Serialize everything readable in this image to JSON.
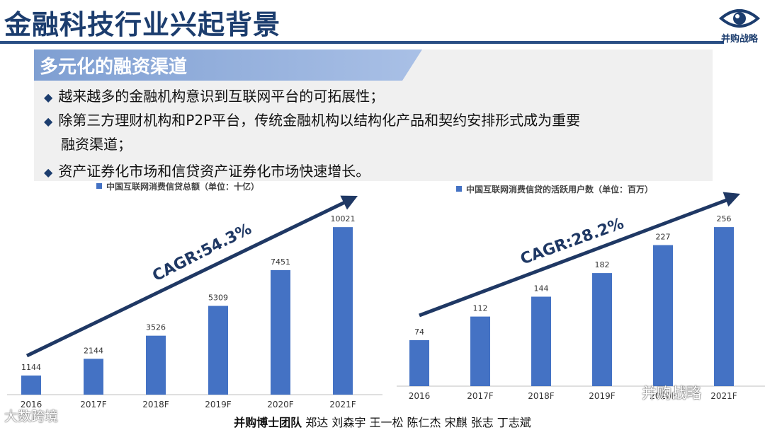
{
  "header": {
    "title": "金融科技行业兴起背景",
    "logo_text": "并购战略"
  },
  "section": {
    "heading": "多元化的融资渠道",
    "bullets": [
      "越来越多的金融机构意识到互联网平台的可拓展性；",
      "除第三方理财机构和P2P平台，传统金融机构以结构化产品和契约安排形式成为重要",
      "资产证券化市场和信贷资产证券化市场快速增长。"
    ],
    "bullet_continuation": "融资渠道；"
  },
  "colors": {
    "bar": "#4472c4",
    "arrow": "#1f3864",
    "title": "#1c3d6e",
    "banner": "#8fa9d6"
  },
  "chart_data": [
    {
      "type": "bar",
      "legend": "中国互联网消费信贷总额（单位：十亿）",
      "categories": [
        "2016",
        "2017F",
        "2018F",
        "2019F",
        "2020F",
        "2021F"
      ],
      "values": [
        1144,
        2144,
        3526,
        5309,
        7451,
        10021
      ],
      "annotation": "CAGR:54.3%",
      "ylim": [
        0,
        11000
      ]
    },
    {
      "type": "bar",
      "legend": "中国互联网消费信贷的活跃用户数（单位：百万）",
      "categories": [
        "2016",
        "2017F",
        "2018F",
        "2019F",
        "2020F",
        "2021F"
      ],
      "values": [
        74,
        112,
        144,
        182,
        227,
        256
      ],
      "annotation": "CAGR:28.2%",
      "ylim": [
        0,
        280
      ]
    }
  ],
  "footer": {
    "team": "并购博士团队",
    "members": "郑达 刘森宇 王一松 陈仁杰 宋麒 张志 丁志斌"
  },
  "watermarks": {
    "left": "大数跨境",
    "right": "并购战略"
  }
}
